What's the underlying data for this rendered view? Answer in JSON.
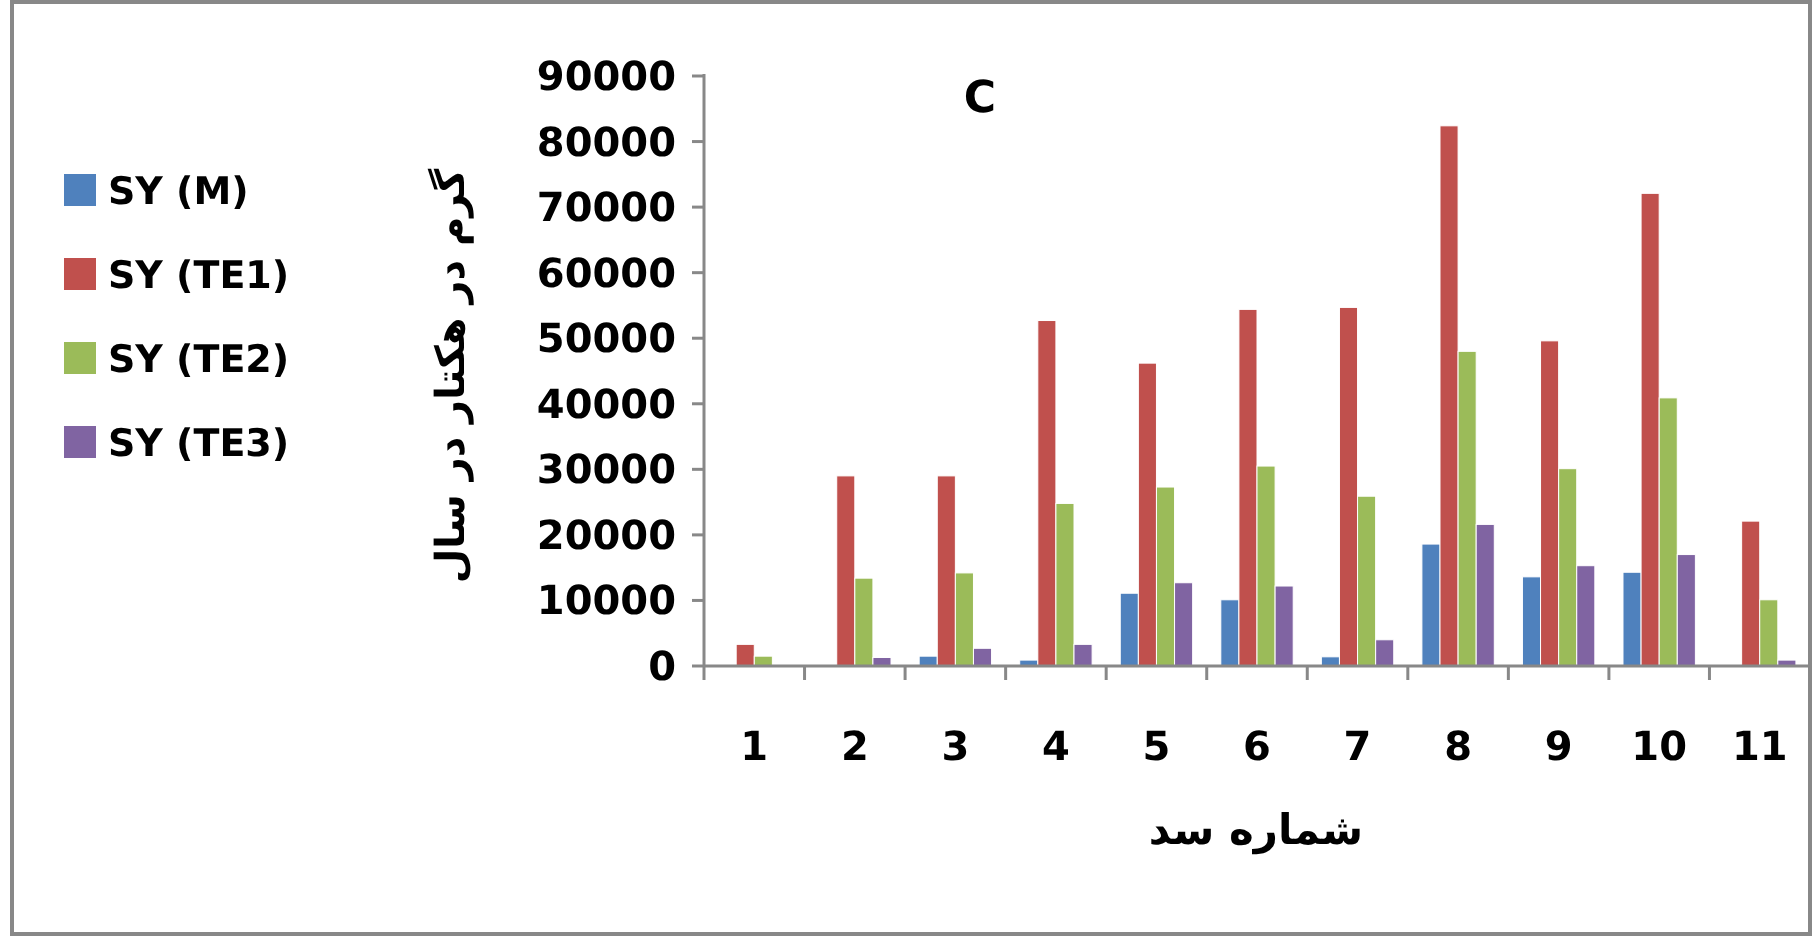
{
  "chart_data": {
    "type": "bar",
    "title": "C",
    "xlabel": "شماره سد",
    "ylabel": "گرم در هکتار در سال",
    "categories": [
      "1",
      "2",
      "3",
      "4",
      "5",
      "6",
      "7",
      "8",
      "9",
      "10",
      "11"
    ],
    "series": [
      {
        "name": "SY (M)",
        "color": "#4f81bd",
        "values": [
          0,
          0,
          1500,
          900,
          11100,
          10100,
          1400,
          18600,
          13600,
          14300,
          0
        ]
      },
      {
        "name": "SY (TE1)",
        "color": "#c0504d",
        "values": [
          3300,
          29000,
          29000,
          52700,
          46200,
          54400,
          54700,
          82400,
          49600,
          72100,
          22100
        ]
      },
      {
        "name": "SY (TE2)",
        "color": "#9bbb59",
        "values": [
          1500,
          13400,
          14200,
          24800,
          27300,
          30500,
          25900,
          48000,
          30100,
          40900,
          10100
        ]
      },
      {
        "name": "SY (TE3)",
        "color": "#8064a2",
        "values": [
          0,
          1300,
          2700,
          3300,
          12700,
          12200,
          4000,
          21600,
          15300,
          17000,
          900
        ]
      }
    ],
    "ylim": [
      0,
      90000
    ],
    "yticks": [
      0,
      10000,
      20000,
      30000,
      40000,
      50000,
      60000,
      70000,
      80000,
      90000
    ],
    "legend": "left"
  }
}
